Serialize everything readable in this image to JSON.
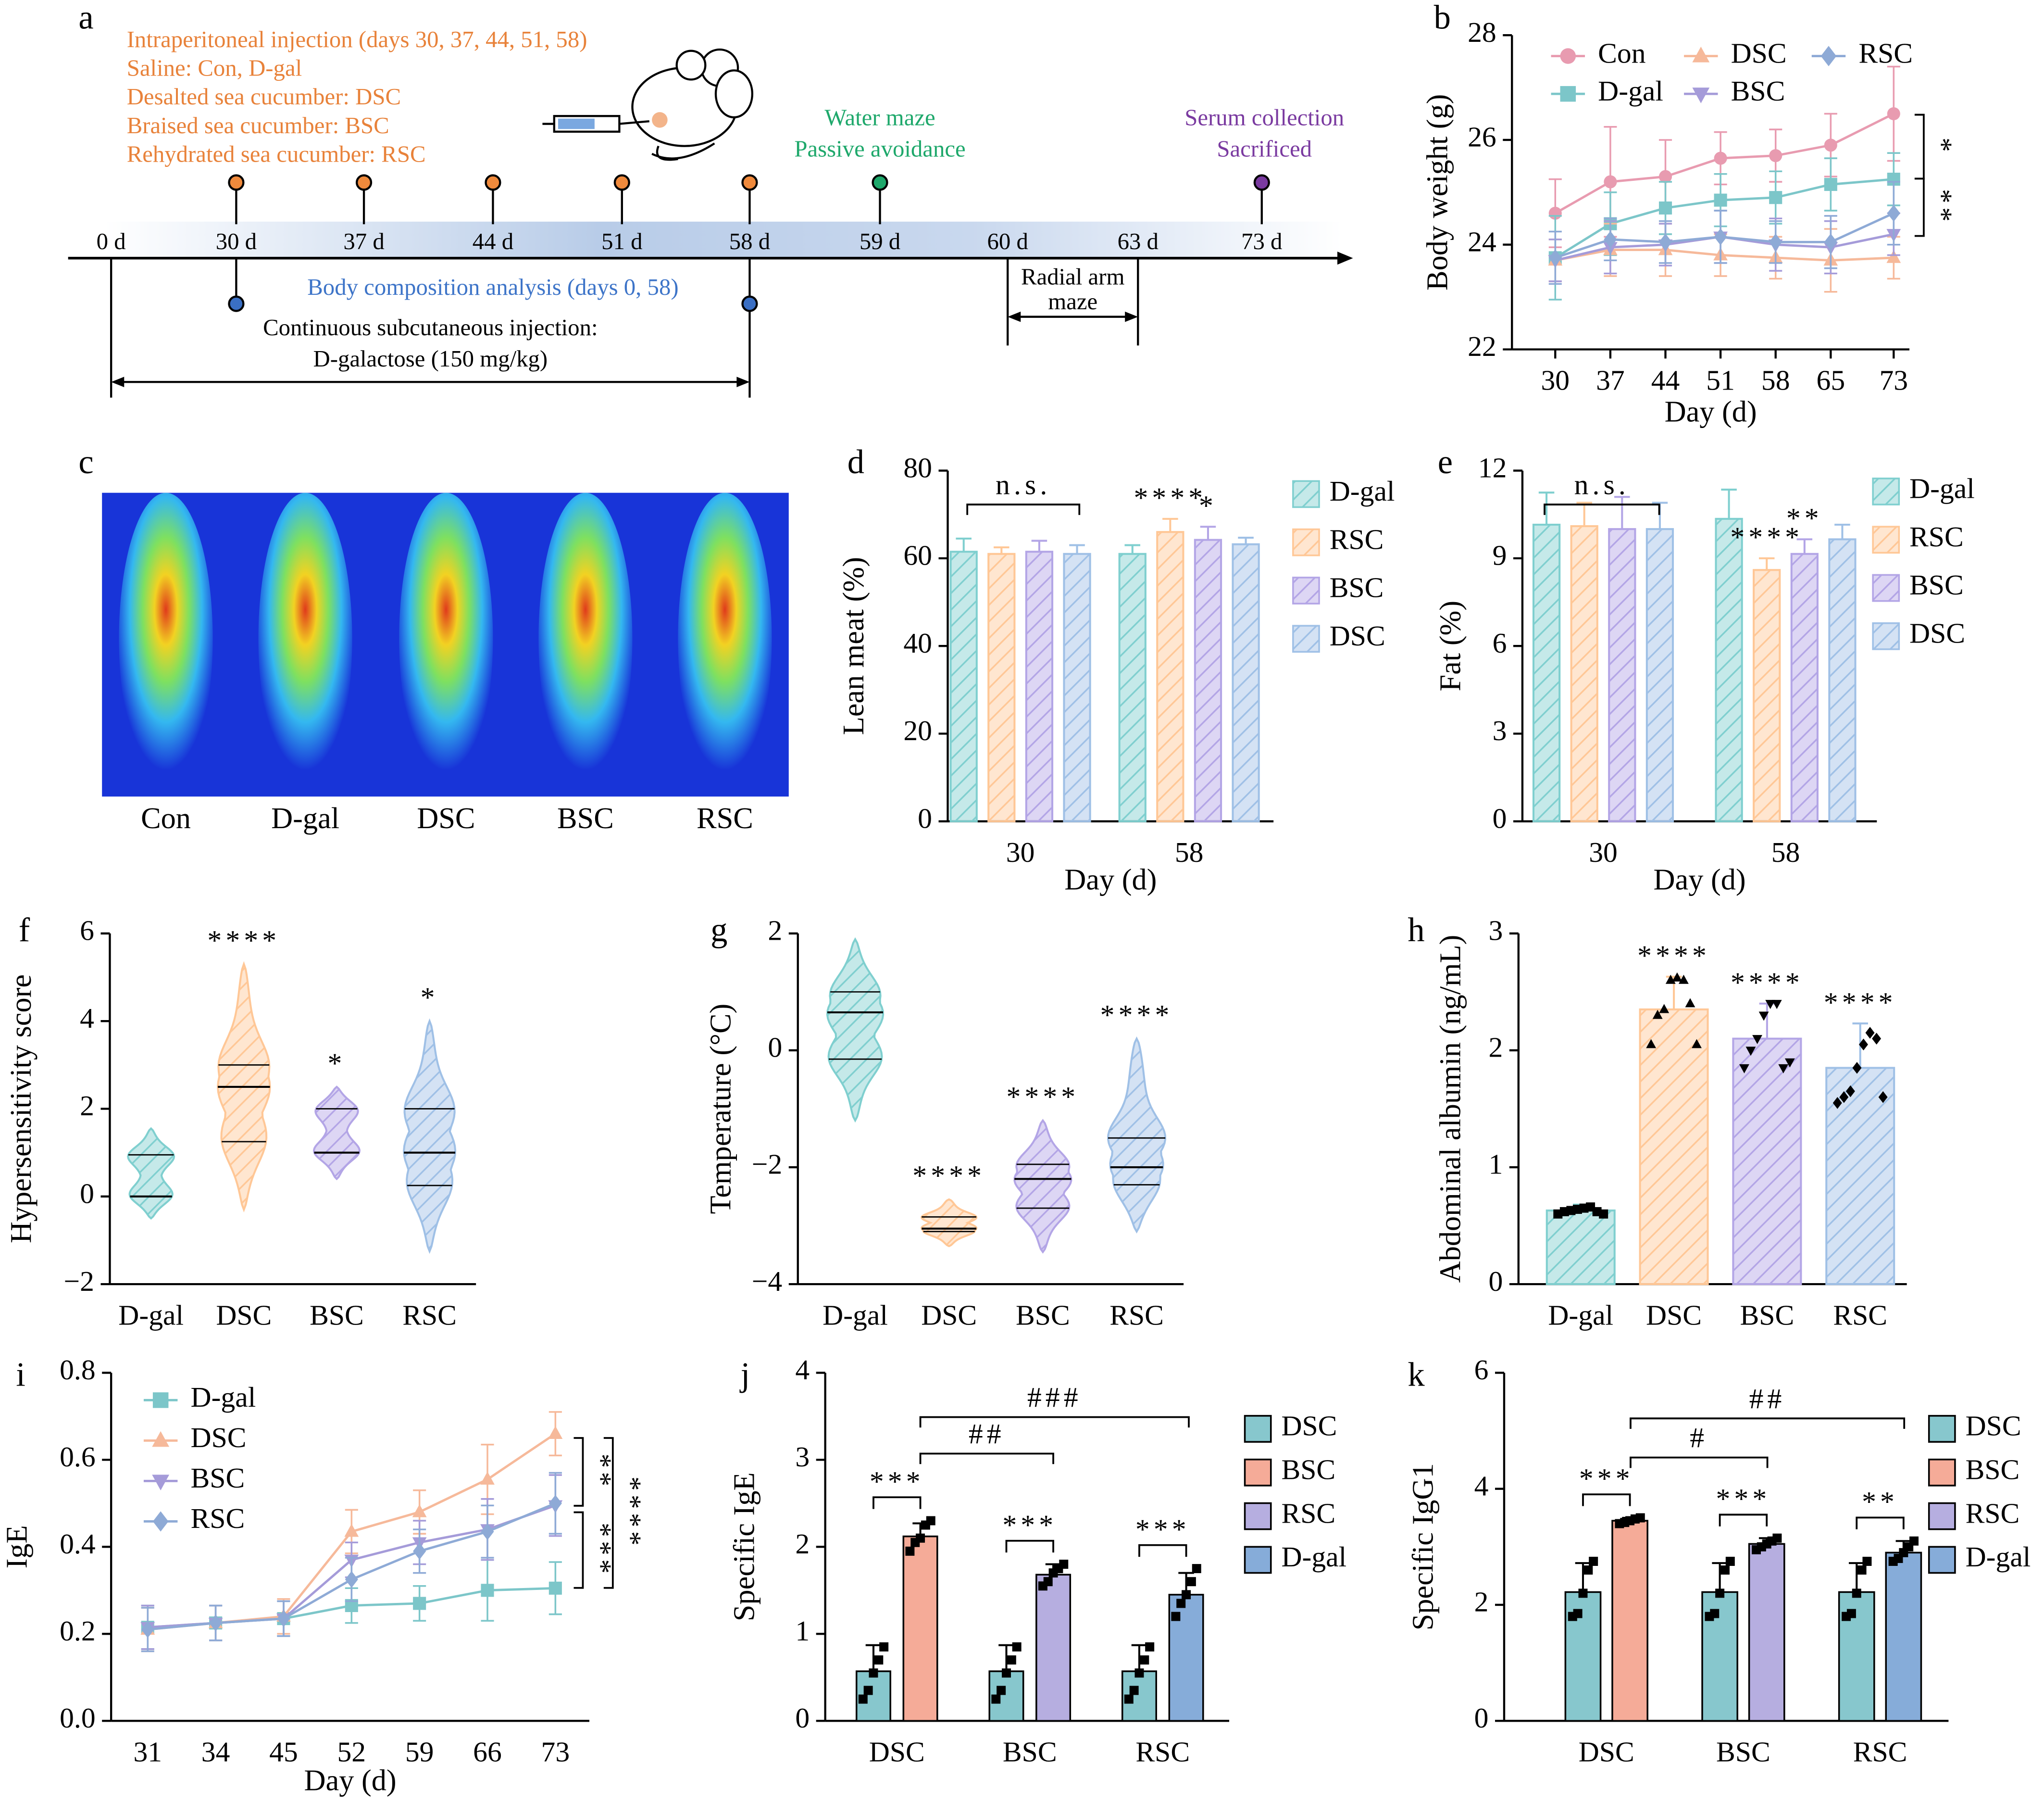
{
  "timeline": {
    "label": "a",
    "injection": [
      "Intraperitoneal injection (days 30, 37, 44, 51, 58)",
      "Saline: Con, D-gal",
      "Desalted sea cucumber: DSC",
      "Braised sea cucumber: BSC",
      "Rehydrated sea cucumber: RSC"
    ],
    "tests": [
      "Water maze",
      "Passive avoidance"
    ],
    "end": [
      "Serum collection",
      "Sacrificed"
    ],
    "days": [
      "0 d",
      "30 d",
      "37 d",
      "44 d",
      "51 d",
      "58 d",
      "59 d",
      "60 d",
      "63 d",
      "73 d"
    ],
    "body_composition": "Body composition analysis (days 0, 58)",
    "d_galactose": [
      "Continuous subcutaneous injection:",
      "D-galactose (150 mg/kg)"
    ],
    "radial": [
      "Radial arm",
      "maze"
    ]
  },
  "image": {
    "label": "c",
    "groups": [
      "Con",
      "D-gal",
      "DSC",
      "BSC",
      "RSC"
    ]
  },
  "chart_data": [
    {
      "label": "b",
      "type": "line",
      "x": [
        30,
        37,
        44,
        51,
        58,
        65,
        73
      ],
      "xlim": [
        24.5,
        75
      ],
      "xticks": [
        30,
        37,
        44,
        51,
        58,
        65,
        73
      ],
      "ylim": [
        22,
        28
      ],
      "yticks": [
        22,
        24,
        26,
        28
      ],
      "x_label": "Day (d)",
      "y_label": "Body weight (g)",
      "annotations": [
        "*",
        "**"
      ],
      "series": [
        {
          "name": "Con",
          "color": "#e89bb0",
          "marker": "circle",
          "values": [
            24.6,
            25.2,
            25.3,
            25.65,
            25.7,
            25.9,
            26.5
          ],
          "errors": [
            0.65,
            1.05,
            0.7,
            0.5,
            0.5,
            0.6,
            0.9
          ]
        },
        {
          "name": "D-gal",
          "color": "#7cc6c9",
          "marker": "square",
          "values": [
            23.75,
            24.4,
            24.7,
            24.85,
            24.9,
            25.15,
            25.25
          ],
          "errors": [
            0.8,
            0.6,
            0.5,
            0.5,
            0.5,
            0.5,
            0.5
          ]
        },
        {
          "name": "DSC",
          "color": "#f6b99a",
          "marker": "triangle",
          "values": [
            23.7,
            23.9,
            23.9,
            23.8,
            23.75,
            23.7,
            23.75
          ],
          "errors": [
            0.4,
            0.5,
            0.5,
            0.4,
            0.4,
            0.6,
            0.4
          ]
        },
        {
          "name": "BSC",
          "color": "#a59bd9",
          "marker": "down",
          "values": [
            23.7,
            23.95,
            24.0,
            24.15,
            24.0,
            23.95,
            24.2
          ],
          "errors": [
            0.4,
            0.5,
            0.4,
            0.5,
            0.5,
            0.5,
            0.4
          ]
        },
        {
          "name": "RSC",
          "color": "#8eaad6",
          "marker": "diamond",
          "values": [
            23.75,
            24.1,
            24.05,
            24.15,
            24.05,
            24.05,
            24.6
          ],
          "errors": [
            0.5,
            0.4,
            0.4,
            0.5,
            0.4,
            0.5,
            0.6
          ]
        }
      ]
    },
    {
      "label": "d",
      "type": "bar",
      "hatch": true,
      "categories": [
        "30",
        "58"
      ],
      "ylim": [
        0,
        80
      ],
      "yticks": [
        0,
        20,
        40,
        60,
        80
      ],
      "x_label": "Day (d)",
      "y_label": "Lean meat (%)",
      "annotations": [
        "n.s."
      ],
      "series": [
        {
          "name": "D-gal",
          "color": "#7fcfcf",
          "values": [
            61.5,
            61
          ],
          "errors": [
            3,
            2
          ],
          "sig_labels": [
            null,
            null
          ]
        },
        {
          "name": "RSC",
          "color": "#ffc796",
          "values": [
            61,
            66
          ],
          "errors": [
            1.5,
            3
          ],
          "sig_labels": [
            null,
            "****"
          ]
        },
        {
          "name": "BSC",
          "color": "#b3a5e6",
          "values": [
            61.5,
            64.2
          ],
          "errors": [
            2.5,
            3
          ],
          "sig_labels": [
            null,
            "*"
          ]
        },
        {
          "name": "DSC",
          "color": "#9fc0e6",
          "values": [
            61,
            63.2
          ],
          "errors": [
            2,
            1.5
          ],
          "sig_labels": [
            null,
            null
          ]
        }
      ]
    },
    {
      "label": "e",
      "type": "bar",
      "hatch": true,
      "categories": [
        "30",
        "58"
      ],
      "ylim": [
        0,
        12
      ],
      "yticks": [
        0,
        3,
        6,
        9,
        12
      ],
      "x_label": "Day (d)",
      "y_label": "Fat (%)",
      "annotations": [
        "n.s."
      ],
      "series": [
        {
          "name": "D-gal",
          "color": "#7fcfcf",
          "values": [
            10.15,
            10.35
          ],
          "errors": [
            1.1,
            1.0
          ],
          "sig_labels": [
            null,
            null
          ]
        },
        {
          "name": "RSC",
          "color": "#ffc796",
          "values": [
            10.1,
            8.6
          ],
          "errors": [
            0.8,
            0.4
          ],
          "sig_labels": [
            null,
            "****"
          ]
        },
        {
          "name": "BSC",
          "color": "#b3a5e6",
          "values": [
            10.0,
            9.15
          ],
          "errors": [
            1.1,
            0.5
          ],
          "sig_labels": [
            null,
            "**"
          ]
        },
        {
          "name": "DSC",
          "color": "#9fc0e6",
          "values": [
            10.0,
            9.65
          ],
          "errors": [
            0.9,
            0.5
          ],
          "sig_labels": [
            null,
            null
          ]
        }
      ]
    },
    {
      "label": "f",
      "type": "violin",
      "categories": [
        "D-gal",
        "DSC",
        "BSC",
        "RSC"
      ],
      "colors": [
        "#7fcfcf",
        "#ffc796",
        "#b3a5e6",
        "#9fc0e6"
      ],
      "ylim": [
        -2,
        6
      ],
      "yticks": [
        {
          "value": -2,
          "label": "−2"
        },
        0,
        2,
        4,
        6
      ],
      "y_label": "Hypersensitivity score",
      "sig_labels": [
        null,
        "****",
        "*",
        "*"
      ],
      "stats": [
        {
          "min": -0.5,
          "q1": 0,
          "median": 0,
          "q3": 0.95,
          "max": 1.55
        },
        {
          "min": -0.3,
          "q1": 1.25,
          "median": 2.5,
          "q3": 3.0,
          "max": 5.3
        },
        {
          "min": 0.4,
          "q1": 1.0,
          "median": 1.0,
          "q3": 2.0,
          "max": 2.5
        },
        {
          "min": -1.25,
          "q1": 0.25,
          "median": 1.0,
          "q3": 2.0,
          "max": 4.0
        }
      ]
    },
    {
      "label": "g",
      "type": "violin",
      "categories": [
        "D-gal",
        "DSC",
        "BSC",
        "RSC"
      ],
      "colors": [
        "#7fcfcf",
        "#ffc796",
        "#b3a5e6",
        "#9fc0e6"
      ],
      "ylim": [
        -4,
        2
      ],
      "yticks": [
        {
          "value": -4,
          "label": "−4"
        },
        {
          "value": -2,
          "label": "−2"
        },
        0,
        2
      ],
      "y_label": "Temperature (°C)",
      "sig_labels": [
        null,
        "****",
        "****",
        "****"
      ],
      "stats": [
        {
          "min": -1.2,
          "q1": -0.15,
          "median": 0.65,
          "q3": 1.0,
          "max": 1.9
        },
        {
          "min": -3.35,
          "q1": -3.1,
          "median": -3.05,
          "q3": -2.85,
          "max": -2.55
        },
        {
          "min": -3.45,
          "q1": -2.7,
          "median": -2.2,
          "q3": -1.95,
          "max": -1.2
        },
        {
          "min": -3.1,
          "q1": -2.3,
          "median": -2.0,
          "q3": -1.5,
          "max": 0.2
        }
      ]
    },
    {
      "label": "h",
      "type": "bar",
      "hatch": true,
      "categories": [
        "D-gal",
        "DSC",
        "BSC",
        "RSC"
      ],
      "ylim": [
        0,
        3
      ],
      "yticks": [
        0,
        1,
        2,
        3
      ],
      "y_label": "Abdominal albumin (ng/mL)",
      "series": [
        {
          "colors": [
            "#7fcfcf",
            "#ffc796",
            "#b3a5e6",
            "#9fc0e6"
          ],
          "values": [
            0.63,
            2.35,
            2.1,
            1.85
          ],
          "errors": [
            0.05,
            0.28,
            0.3,
            0.38
          ],
          "sig_labels": [
            null,
            "****",
            "****",
            "****"
          ],
          "points": [
            [
              0.6,
              0.62,
              0.63,
              0.64,
              0.65,
              0.66,
              0.62,
              0.6
            ],
            [
              2.05,
              2.3,
              2.35,
              2.6,
              2.62,
              2.6,
              2.4,
              2.05
            ],
            [
              1.85,
              2.0,
              2.1,
              2.3,
              2.4,
              2.4,
              1.85,
              1.9
            ],
            [
              1.55,
              1.6,
              1.65,
              1.85,
              2.05,
              2.15,
              2.1,
              1.6
            ]
          ]
        }
      ]
    },
    {
      "label": "i",
      "type": "line",
      "categories": [
        "31",
        "34",
        "45",
        "52",
        "59",
        "66",
        "73"
      ],
      "ylim": [
        0,
        0.8
      ],
      "yticks": [
        {
          "value": 0,
          "label": "0.0"
        },
        0.2,
        0.4,
        0.6,
        0.8
      ],
      "x_label": "Day (d)",
      "y_label": "IgE",
      "annotations": [
        "**",
        "***",
        "****"
      ],
      "series": [
        {
          "name": "D-gal",
          "color": "#7cc6c9",
          "marker": "square",
          "values": [
            0.215,
            0.225,
            0.235,
            0.265,
            0.27,
            0.3,
            0.305
          ],
          "errors": [
            0.05,
            0.04,
            0.04,
            0.04,
            0.04,
            0.07,
            0.06
          ]
        },
        {
          "name": "DSC",
          "color": "#f6b99a",
          "marker": "triangle",
          "values": [
            0.21,
            0.225,
            0.24,
            0.435,
            0.48,
            0.555,
            0.66
          ],
          "errors": [
            0.05,
            0.04,
            0.04,
            0.05,
            0.05,
            0.08,
            0.05
          ]
        },
        {
          "name": "BSC",
          "color": "#a59bd9",
          "marker": "down",
          "values": [
            0.215,
            0.225,
            0.235,
            0.37,
            0.41,
            0.44,
            0.495
          ],
          "errors": [
            0.05,
            0.04,
            0.04,
            0.04,
            0.05,
            0.07,
            0.07
          ]
        },
        {
          "name": "RSC",
          "color": "#8eaad6",
          "marker": "diamond",
          "values": [
            0.21,
            0.225,
            0.235,
            0.325,
            0.39,
            0.435,
            0.5
          ],
          "errors": [
            0.05,
            0.04,
            0.04,
            0.05,
            0.05,
            0.06,
            0.07
          ]
        }
      ]
    },
    {
      "label": "j",
      "type": "bar",
      "hatch": false,
      "categories": [
        "DSC",
        "BSC",
        "RSC"
      ],
      "ylim": [
        0,
        4
      ],
      "yticks": [
        0,
        1,
        2,
        3,
        4
      ],
      "y_label": "Specific IgE",
      "pair_labels": [
        "***",
        "***",
        "***"
      ],
      "annotations": [
        "##",
        "###"
      ],
      "legend": [
        {
          "name": "DSC",
          "color": "#87c7cd"
        },
        {
          "name": "BSC",
          "color": "#f5ab98"
        },
        {
          "name": "RSC",
          "color": "#b6aee0"
        },
        {
          "name": "D-gal",
          "color": "#86acd9"
        }
      ],
      "series": [
        {
          "color": "#87c7cd",
          "values": [
            0.57,
            0.57,
            0.57
          ],
          "errors": [
            0.3,
            0.3,
            0.3
          ],
          "points": [
            [
              0.25,
              0.35,
              0.55,
              0.7,
              0.85
            ],
            [
              0.25,
              0.35,
              0.55,
              0.7,
              0.85
            ],
            [
              0.25,
              0.35,
              0.55,
              0.7,
              0.85
            ]
          ]
        },
        {
          "colors": [
            "#f5ab98",
            "#b6aee0",
            "#86acd9"
          ],
          "values": [
            2.12,
            1.68,
            1.45
          ],
          "errors": [
            0.15,
            0.12,
            0.25
          ],
          "points": [
            [
              1.95,
              2.05,
              2.1,
              2.25,
              2.3
            ],
            [
              1.55,
              1.6,
              1.7,
              1.75,
              1.8
            ],
            [
              1.2,
              1.35,
              1.45,
              1.6,
              1.75
            ]
          ]
        }
      ]
    },
    {
      "label": "k",
      "type": "bar",
      "hatch": false,
      "categories": [
        "DSC",
        "BSC",
        "RSC"
      ],
      "ylim": [
        0,
        6
      ],
      "yticks": [
        0,
        2,
        4,
        6
      ],
      "y_label": "Specific IgG1",
      "pair_labels": [
        "***",
        "***",
        "**"
      ],
      "annotations": [
        "#",
        "##"
      ],
      "legend": [
        {
          "name": "DSC",
          "color": "#87c7cd"
        },
        {
          "name": "BSC",
          "color": "#f5ab98"
        },
        {
          "name": "RSC",
          "color": "#b6aee0"
        },
        {
          "name": "D-gal",
          "color": "#86acd9"
        }
      ],
      "series": [
        {
          "color": "#87c7cd",
          "values": [
            2.22,
            2.22,
            2.22
          ],
          "errors": [
            0.5,
            0.5,
            0.5
          ],
          "points": [
            [
              1.8,
              1.85,
              2.2,
              2.6,
              2.75
            ],
            [
              1.8,
              1.85,
              2.2,
              2.6,
              2.75
            ],
            [
              1.8,
              1.85,
              2.2,
              2.6,
              2.75
            ]
          ]
        },
        {
          "colors": [
            "#f5ab98",
            "#b6aee0",
            "#86acd9"
          ],
          "values": [
            3.45,
            3.05,
            2.9
          ],
          "errors": [
            0.05,
            0.1,
            0.2
          ],
          "points": [
            [
              3.4,
              3.42,
              3.45,
              3.48,
              3.5
            ],
            [
              2.95,
              3.0,
              3.05,
              3.1,
              3.15
            ],
            [
              2.75,
              2.8,
              2.9,
              3.0,
              3.1
            ]
          ]
        }
      ]
    }
  ]
}
